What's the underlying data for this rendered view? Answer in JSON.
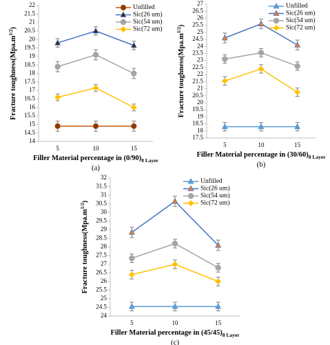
{
  "chart_data": [
    {
      "type": "line",
      "panel_label": "(a)",
      "y_label": {
        "text": "Fracture toughness(Mpa.m",
        "superscript": "1/2",
        "close": ")"
      },
      "x_label": {
        "text": "Filler Material percentage in (0/90)",
        "subscript": "8 Layer"
      },
      "categories": [
        "5",
        "10",
        "15"
      ],
      "ylim": [
        14,
        22
      ],
      "yticks": [
        14,
        14.5,
        15,
        15.5,
        16,
        16.5,
        17,
        17.5,
        18,
        18.5,
        19,
        19.5,
        20,
        20.5,
        21,
        21.5,
        22
      ],
      "series": [
        {
          "name": "Unfilled",
          "color": "#c55a11",
          "marker_color": "#843c0c",
          "marker": "circle",
          "values": [
            14.9,
            14.9,
            14.9
          ],
          "errors": [
            0.3,
            0.3,
            0.3
          ]
        },
        {
          "name": "Sic(26 um)",
          "color": "#4472c4",
          "marker_color": "#3a2a1a",
          "marker": "triangle",
          "values": [
            19.8,
            20.5,
            19.65
          ],
          "errors": [
            0.25,
            0.25,
            0.25
          ]
        },
        {
          "name": "Sic(54 um)",
          "color": "#a5a5a5",
          "marker_color": "#a5a5a5",
          "marker": "circle",
          "values": [
            18.4,
            19.1,
            18.0
          ],
          "errors": [
            0.3,
            0.3,
            0.3
          ]
        },
        {
          "name": "Sic(72 um)",
          "color": "#ffc000",
          "marker_color": "#ffc000",
          "marker": "diamond",
          "values": [
            16.6,
            17.15,
            16.0
          ],
          "errors": [
            0.2,
            0.2,
            0.2
          ]
        }
      ]
    },
    {
      "type": "line",
      "panel_label": "(b)",
      "y_label": {
        "text": "Fracture toughness(Mpa.m",
        "superscript": "1/2",
        "close": ")"
      },
      "x_label": {
        "text": "Filler Material percentage in (30/60)",
        "subscript": "8 Layer"
      },
      "categories": [
        "5",
        "10",
        "15"
      ],
      "ylim": [
        17.5,
        27
      ],
      "yticks": [
        17.5,
        18,
        18.5,
        19,
        19.5,
        20,
        20.5,
        21,
        21.5,
        22,
        22.5,
        23,
        23.5,
        24,
        24.5,
        25,
        25.5,
        26,
        26.5,
        27
      ],
      "series": [
        {
          "name": "Unfilled",
          "color": "#5b9bd5",
          "marker_color": "#5b9bd5",
          "marker": "triangle",
          "values": [
            18.3,
            18.3,
            18.3
          ],
          "errors": [
            0.3,
            0.3,
            0.3
          ]
        },
        {
          "name": "Sic(26 um)",
          "color": "#4472c4",
          "marker_color": "#ed7d31",
          "marker": "triangle",
          "values": [
            24.6,
            25.6,
            24.1
          ],
          "errors": [
            0.35,
            0.35,
            0.35
          ]
        },
        {
          "name": "Sic(54 um)",
          "color": "#a5a5a5",
          "marker_color": "#a5a5a5",
          "marker": "circle",
          "values": [
            23.1,
            23.55,
            22.6
          ],
          "errors": [
            0.3,
            0.3,
            0.3
          ]
        },
        {
          "name": "Sic(72 um)",
          "color": "#ffc000",
          "marker_color": "#ffc000",
          "marker": "diamond",
          "values": [
            21.55,
            22.4,
            20.75
          ],
          "errors": [
            0.3,
            0.3,
            0.3
          ]
        }
      ]
    },
    {
      "type": "line",
      "panel_label": "(c)",
      "y_label": {
        "text": "Fracture toughness(Mpa.m",
        "superscript": "1/2",
        "close": ")"
      },
      "x_label": {
        "text": "Filler Material percentage in (45/45)",
        "subscript": "8 Layer"
      },
      "categories": [
        "5",
        "10",
        "15"
      ],
      "ylim": [
        24,
        32
      ],
      "yticks": [
        24,
        24.5,
        25,
        25.5,
        26,
        26.5,
        27,
        27.5,
        28,
        28.5,
        29,
        29.5,
        30,
        30.5,
        31,
        31.5,
        32
      ],
      "series": [
        {
          "name": "Unfilled",
          "color": "#5b9bd5",
          "marker_color": "#5b9bd5",
          "marker": "triangle",
          "values": [
            24.55,
            24.55,
            24.55
          ],
          "errors": [
            0.25,
            0.25,
            0.25
          ]
        },
        {
          "name": "Sic(26 um)",
          "color": "#4472c4",
          "marker_color": "#ed7d31",
          "marker": "triangle",
          "values": [
            28.85,
            30.65,
            28.1
          ],
          "errors": [
            0.3,
            0.3,
            0.3
          ]
        },
        {
          "name": "Sic(54 um)",
          "color": "#a5a5a5",
          "marker_color": "#a5a5a5",
          "marker": "circle",
          "values": [
            27.35,
            28.2,
            26.8
          ],
          "errors": [
            0.25,
            0.25,
            0.25
          ]
        },
        {
          "name": "Sic(72 um)",
          "color": "#ffc000",
          "marker_color": "#ffc000",
          "marker": "diamond",
          "values": [
            26.4,
            27.0,
            26.0
          ],
          "errors": [
            0.25,
            0.25,
            0.25
          ]
        }
      ]
    }
  ]
}
